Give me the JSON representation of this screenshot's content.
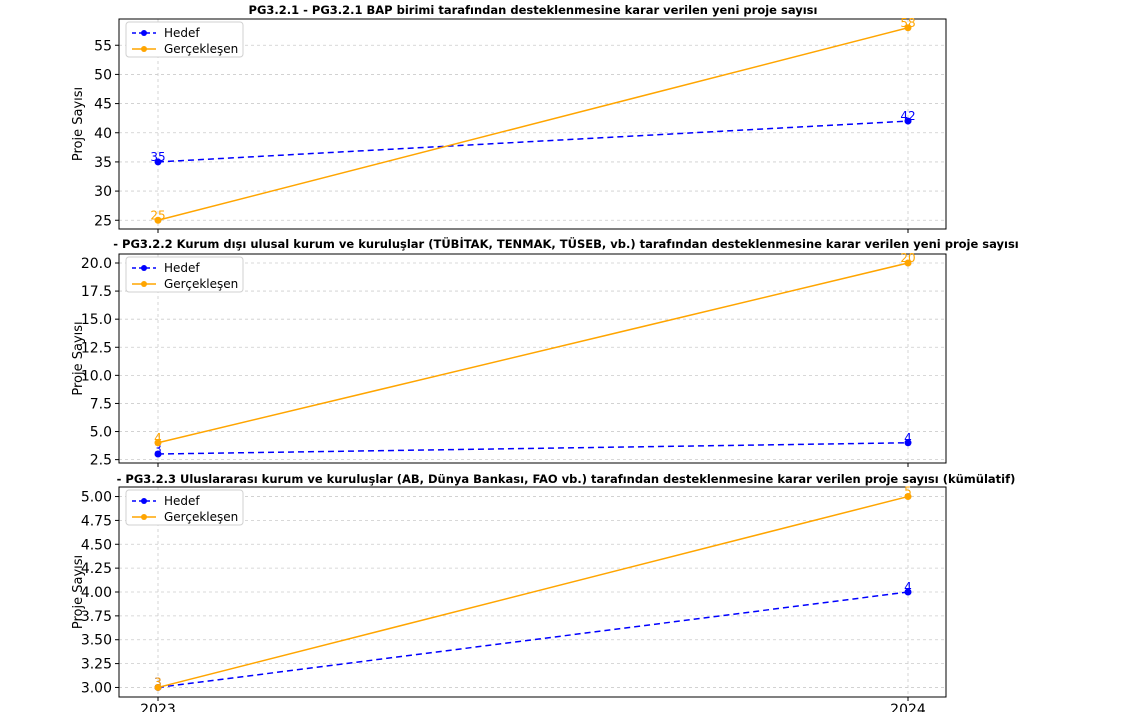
{
  "chart_data": [
    {
      "type": "line",
      "title": "PG3.2.1 - PG3.2.1 BAP birimi tarafından desteklenmesine karar verilen yeni proje sayısı",
      "ylabel": "Proje Sayısı",
      "x": [
        "2023",
        "2024"
      ],
      "ylim": [
        23.5,
        59.5
      ],
      "yticks": [
        25,
        30,
        35,
        40,
        45,
        50,
        55
      ],
      "ytick_labels": [
        "25",
        "30",
        "35",
        "40",
        "45",
        "50",
        "55"
      ],
      "grid": true,
      "legend": "top-left",
      "series": [
        {
          "name": "Hedef",
          "values": [
            35,
            42
          ],
          "color": "#0000ff",
          "dashed": true,
          "labels": [
            "35",
            "42"
          ]
        },
        {
          "name": "Gerçekleşen",
          "values": [
            25,
            58
          ],
          "color": "#ffa500",
          "dashed": false,
          "labels": [
            "25",
            "58"
          ]
        }
      ]
    },
    {
      "type": "line",
      "title": "- PG3.2.2 Kurum dışı ulusal kurum ve kuruluşlar (TÜBİTAK, TENMAK, TÜSEB,  vb.) tarafından desteklenmesine karar verilen yeni proje sayısı",
      "ylabel": "Proje Sayısı",
      "x": [
        "2023",
        "2024"
      ],
      "ylim": [
        2.2,
        20.8
      ],
      "yticks": [
        2.5,
        5.0,
        7.5,
        10.0,
        12.5,
        15.0,
        17.5,
        20.0
      ],
      "ytick_labels": [
        "2.5",
        "5.0",
        "7.5",
        "10.0",
        "12.5",
        "15.0",
        "17.5",
        "20.0"
      ],
      "grid": true,
      "legend": "top-left",
      "series": [
        {
          "name": "Hedef",
          "values": [
            3,
            4
          ],
          "color": "#0000ff",
          "dashed": true,
          "labels": [
            "3",
            "4"
          ]
        },
        {
          "name": "Gerçekleşen",
          "values": [
            4,
            20
          ],
          "color": "#ffa500",
          "dashed": false,
          "labels": [
            "4",
            "20"
          ]
        }
      ]
    },
    {
      "type": "line",
      "title": "- PG3.2.3 Uluslararası kurum ve kuruluşlar (AB, Dünya Bankası, FAO vb.) tarafından desteklenmesine karar verilen proje sayısı (kümülatif)",
      "ylabel": "Proje Sayısı",
      "x": [
        "2023",
        "2024"
      ],
      "x_tick_labels_visible": true,
      "ylim": [
        2.9,
        5.1
      ],
      "yticks": [
        3.0,
        3.25,
        3.5,
        3.75,
        4.0,
        4.25,
        4.5,
        4.75,
        5.0
      ],
      "ytick_labels": [
        "3.00",
        "3.25",
        "3.50",
        "3.75",
        "4.00",
        "4.25",
        "4.50",
        "4.75",
        "5.00"
      ],
      "grid": true,
      "legend": "top-left",
      "series": [
        {
          "name": "Hedef",
          "values": [
            3,
            4
          ],
          "color": "#0000ff",
          "dashed": true,
          "labels": [
            "3",
            "4"
          ]
        },
        {
          "name": "Gerçekleşen",
          "values": [
            3,
            5
          ],
          "color": "#ffa500",
          "dashed": false,
          "labels": [
            "3",
            "5"
          ]
        }
      ]
    }
  ]
}
